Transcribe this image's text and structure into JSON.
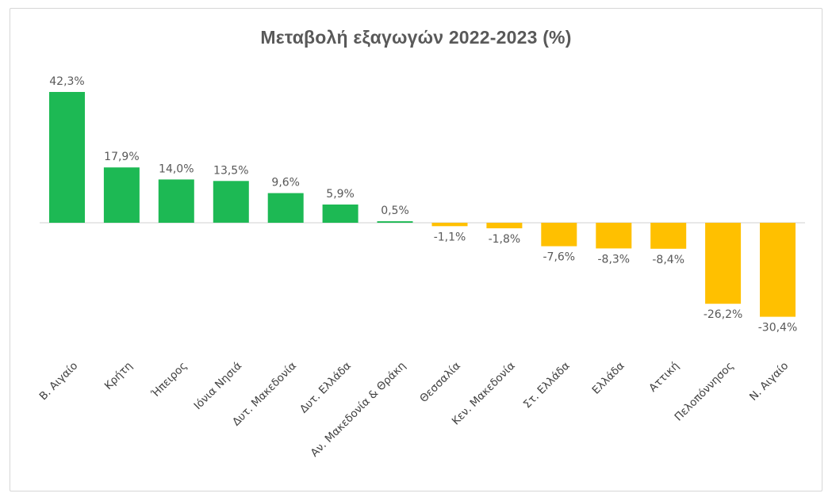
{
  "chart_data": {
    "type": "bar",
    "title": "Μεταβολή εξαγωγών 2022-2023 (%)",
    "categories": [
      "Β. Αιγαίο",
      "Κρήτη",
      "Ήπειρος",
      "Ιόνια Νησιά",
      "Δυτ. Μακεδονία",
      "Δυτ. Ελλάδα",
      "Αν. Μακεδονία & Θράκη",
      "Θεσσαλία",
      "Κεν. Μακεδονία",
      "Στ. Ελλάδα",
      "Ελλάδα",
      "Αττική",
      "Πελοπόννησος",
      "Ν. Αιγαίο"
    ],
    "values": [
      42.3,
      17.9,
      14.0,
      13.5,
      9.6,
      5.9,
      0.5,
      -1.1,
      -1.8,
      -7.6,
      -8.3,
      -8.4,
      -26.2,
      -30.4
    ],
    "value_labels": [
      "42,3%",
      "17,9%",
      "14,0%",
      "13,5%",
      "9,6%",
      "5,9%",
      "0,5%",
      "-1,1%",
      "-1,8%",
      "-7,6%",
      "-8,3%",
      "-8,4%",
      "-26,2%",
      "-30,4%"
    ],
    "xlabel": "",
    "ylabel": "",
    "ylim": [
      -32,
      44
    ],
    "grid": false,
    "legend": "none",
    "colors": {
      "positive": "#1db954",
      "negative": "#ffc000",
      "axis": "#d0d0d0"
    }
  }
}
